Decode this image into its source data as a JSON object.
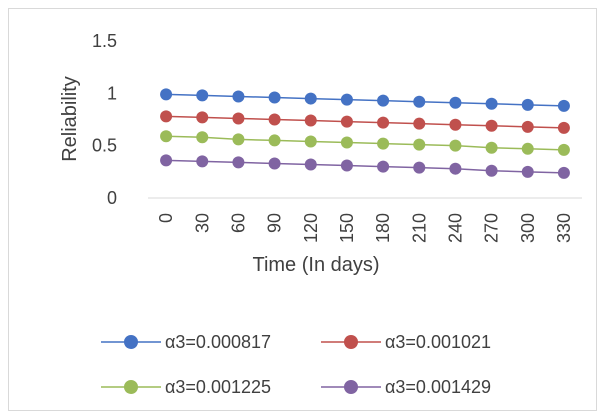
{
  "chart_data": {
    "type": "line",
    "title": "",
    "xlabel": "Time (In days)",
    "ylabel": "Reliability",
    "x": [
      0,
      30,
      60,
      90,
      120,
      150,
      180,
      210,
      240,
      270,
      300,
      330
    ],
    "x_tick_labels": [
      "0",
      "30",
      "60",
      "90",
      "120",
      "150",
      "180",
      "210",
      "240",
      "270",
      "300",
      "330"
    ],
    "y_tick_labels": [
      "0",
      "0.5",
      "1",
      "1.5"
    ],
    "ylim": [
      0,
      1.5
    ],
    "grid": false,
    "legend_position": "bottom",
    "series": [
      {
        "name": "α3=0.000817",
        "color": "#4472c4",
        "values": [
          0.99,
          0.98,
          0.97,
          0.96,
          0.95,
          0.94,
          0.93,
          0.92,
          0.91,
          0.9,
          0.89,
          0.88
        ]
      },
      {
        "name": "α3=0.001021",
        "color": "#c0504d",
        "values": [
          0.78,
          0.77,
          0.76,
          0.75,
          0.74,
          0.73,
          0.72,
          0.71,
          0.7,
          0.69,
          0.68,
          0.67
        ]
      },
      {
        "name": "α3=0.001225",
        "color": "#9bbb59",
        "values": [
          0.59,
          0.58,
          0.56,
          0.55,
          0.54,
          0.53,
          0.52,
          0.51,
          0.5,
          0.48,
          0.47,
          0.46
        ]
      },
      {
        "name": "α3=0.001429",
        "color": "#8064a2",
        "values": [
          0.36,
          0.35,
          0.34,
          0.33,
          0.32,
          0.31,
          0.3,
          0.29,
          0.28,
          0.26,
          0.25,
          0.24
        ]
      }
    ]
  }
}
